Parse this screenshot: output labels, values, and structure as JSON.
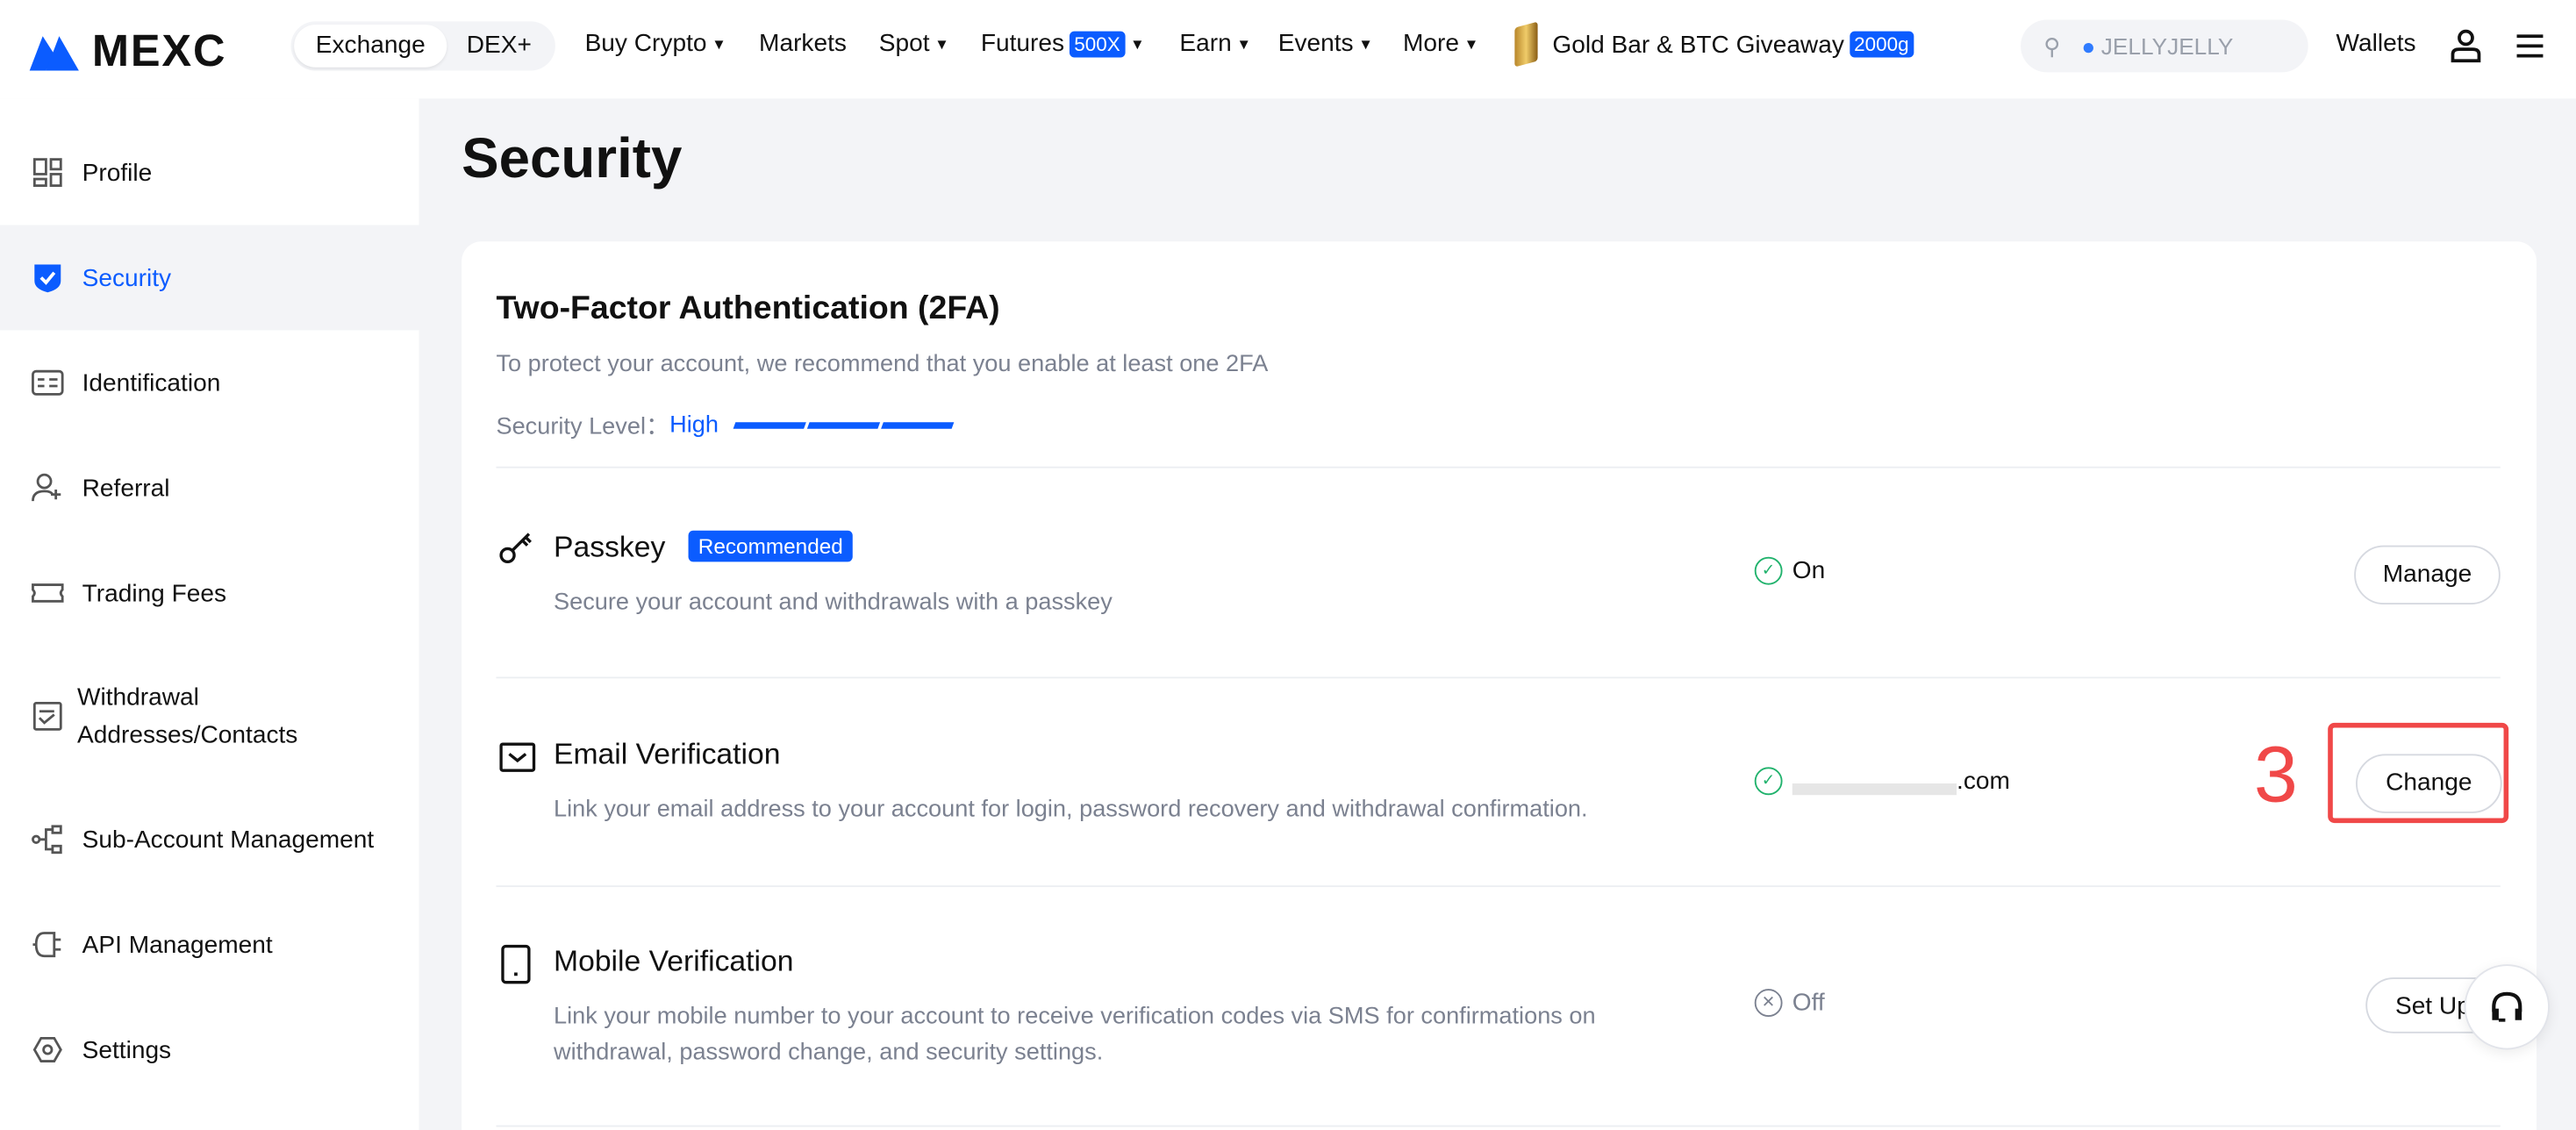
{
  "header": {
    "brand": "MEXC",
    "mode_tabs": [
      "Exchange",
      "DEX+"
    ],
    "nav": [
      {
        "label": "Buy Crypto",
        "dropdown": true
      },
      {
        "label": "Markets",
        "dropdown": false
      },
      {
        "label": "Spot",
        "dropdown": true
      },
      {
        "label": "Futures",
        "badge": "500X",
        "dropdown": true
      },
      {
        "label": "Earn",
        "dropdown": true
      },
      {
        "label": "Events",
        "dropdown": true
      },
      {
        "label": "More",
        "dropdown": true
      }
    ],
    "promo": {
      "label": "Gold Bar & BTC Giveaway",
      "badge": "2000g"
    },
    "search_placeholder": "JELLYJELLY",
    "wallets": "Wallets",
    "icons": [
      "user-icon",
      "menu-icon"
    ]
  },
  "sidebar": {
    "items": [
      {
        "label": "Profile",
        "icon": "profile-icon"
      },
      {
        "label": "Security",
        "icon": "shield-check-icon",
        "active": true
      },
      {
        "label": "Identification",
        "icon": "id-card-icon"
      },
      {
        "label": "Referral",
        "icon": "add-user-icon"
      },
      {
        "label": "Trading Fees",
        "icon": "ticket-icon"
      },
      {
        "label": "Withdrawal Addresses/Contacts",
        "icon": "address-book-icon"
      },
      {
        "label": "Sub-Account Management",
        "icon": "hierarchy-icon"
      },
      {
        "label": "API Management",
        "icon": "plug-icon"
      },
      {
        "label": "Settings",
        "icon": "gear-icon"
      }
    ]
  },
  "page": {
    "title": "Security",
    "section_title": "Two-Factor Authentication (2FA)",
    "section_desc": "To protect your account, we recommend that you enable at least one 2FA",
    "security_level_label": "Security Level：",
    "security_level_value": "High",
    "security_level_segments_filled": 3,
    "security_level_segments_total": 3,
    "accent": "#0b5cff",
    "rows": [
      {
        "title": "Passkey",
        "badge": "Recommended",
        "desc": "Secure your account and withdrawals with a passkey",
        "status": "On",
        "button": "Manage"
      },
      {
        "title": "Email Verification",
        "desc": "Link your email address to your account for login, password recovery and withdrawal confirmation.",
        "status": ".com",
        "button": "Change"
      },
      {
        "title": "Mobile Verification",
        "desc": "Link your mobile number to your account to receive verification codes via SMS for confirmations on withdrawal, password change, and security settings.",
        "status": "Off",
        "button": "Set Up"
      }
    ]
  },
  "annotation": {
    "step": "3",
    "color": "#f04848"
  }
}
